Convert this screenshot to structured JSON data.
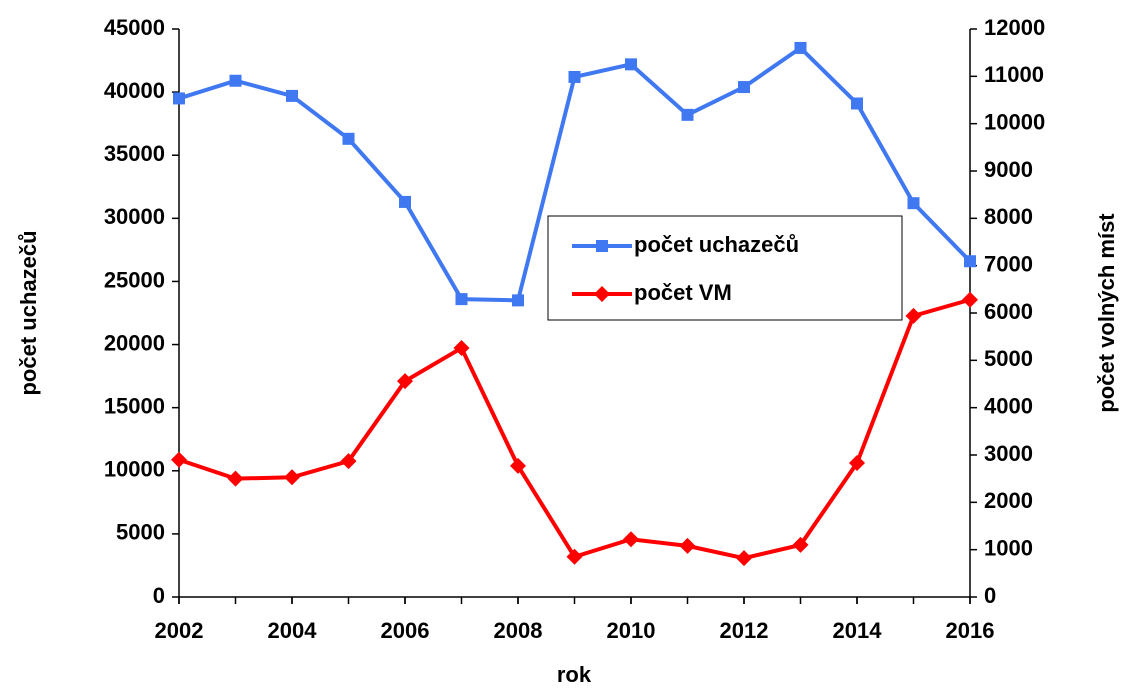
{
  "chart_data": {
    "type": "line",
    "x": [
      2002,
      2003,
      2004,
      2005,
      2006,
      2007,
      2008,
      2009,
      2010,
      2011,
      2012,
      2013,
      2014,
      2015,
      2016
    ],
    "xlim": [
      2002,
      2016
    ],
    "xticks": [
      2002,
      2004,
      2006,
      2008,
      2010,
      2012,
      2014,
      2016
    ],
    "ylim": [
      0,
      45000
    ],
    "yticks": [
      0,
      5000,
      10000,
      15000,
      20000,
      25000,
      30000,
      35000,
      40000,
      45000
    ],
    "y2lim": [
      0,
      12000
    ],
    "y2ticks": [
      0,
      1000,
      2000,
      3000,
      4000,
      5000,
      6000,
      7000,
      8000,
      9000,
      10000,
      11000,
      12000
    ],
    "xlabel": "rok",
    "ylabel": "počet uchazečů",
    "y2label": "počet volných míst",
    "legend": "center",
    "series": [
      {
        "name": "počet uchazečů",
        "color": "#3f78f0",
        "marker": "square",
        "values": [
          39500,
          40900,
          39700,
          36300,
          31300,
          23600,
          23500,
          41200,
          42200,
          38200,
          40400,
          43500,
          39100,
          31200,
          26600
        ]
      },
      {
        "name": "počet VM",
        "color": "#ff0000",
        "marker": "diamond",
        "axis": "y2",
        "values": [
          2900,
          2500,
          2530,
          2870,
          4560,
          5260,
          2770,
          850,
          1220,
          1080,
          820,
          1100,
          2830,
          5940,
          6280
        ]
      }
    ]
  }
}
